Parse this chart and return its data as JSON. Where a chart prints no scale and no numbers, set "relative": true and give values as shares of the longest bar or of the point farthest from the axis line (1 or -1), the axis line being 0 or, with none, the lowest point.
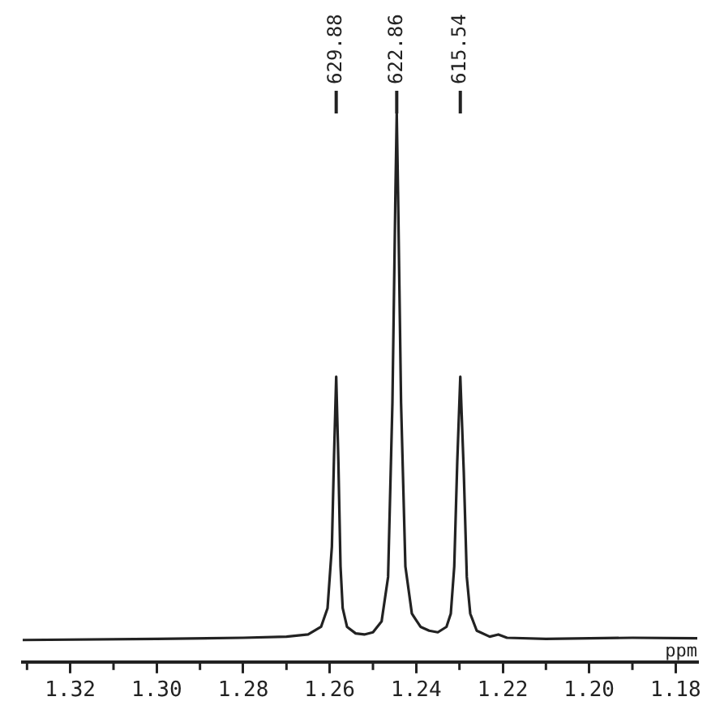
{
  "chart_data": {
    "type": "line",
    "xlabel": "ppm",
    "relative": true,
    "grid": false,
    "legend": false,
    "marker": "none",
    "line_style": "solid",
    "tick_labels": "x",
    "xlim": [
      1.331,
      1.175
    ],
    "xticks": [
      {
        "value": 1.33,
        "label": null
      },
      1.32,
      {
        "value": 1.31,
        "label": null
      },
      {
        "value": 1.3,
        "label": "1.30"
      },
      {
        "value": 1.29,
        "label": null
      },
      1.28,
      {
        "value": 1.27,
        "label": null
      },
      1.26,
      {
        "value": 1.25,
        "label": null
      },
      1.24,
      {
        "value": 1.23,
        "label": null
      },
      1.22,
      {
        "value": 1.21,
        "label": null
      },
      {
        "value": 1.2,
        "label": "1.20"
      },
      {
        "value": 1.19,
        "label": null
      },
      1.18
    ],
    "series": [
      {
        "color": "#222222",
        "x": [
          1.331,
          1.3,
          1.28,
          1.27,
          1.265,
          1.262,
          1.2605,
          1.2595,
          1.259,
          1.2585,
          1.258,
          1.2575,
          1.257,
          1.256,
          1.254,
          1.252,
          1.25,
          1.248,
          1.2465,
          1.2455,
          1.2448,
          1.2445,
          1.2442,
          1.2435,
          1.2425,
          1.241,
          1.239,
          1.237,
          1.235,
          1.233,
          1.232,
          1.2312,
          1.2305,
          1.2298,
          1.229,
          1.2283,
          1.2275,
          1.226,
          1.223,
          1.221,
          1.219,
          1.21,
          1.19,
          1.175
        ],
        "values": [
          0.04,
          0.042,
          0.044,
          0.046,
          0.05,
          0.064,
          0.098,
          0.21,
          0.376,
          0.52,
          0.366,
          0.174,
          0.098,
          0.064,
          0.052,
          0.05,
          0.054,
          0.074,
          0.155,
          0.472,
          0.856,
          1,
          0.856,
          0.472,
          0.174,
          0.088,
          0.064,
          0.057,
          0.054,
          0.064,
          0.088,
          0.174,
          0.366,
          0.52,
          0.347,
          0.155,
          0.088,
          0.057,
          0.046,
          0.05,
          0.044,
          0.042,
          0.044,
          0.043
        ]
      }
    ],
    "annotations": [
      {
        "text": "629.88",
        "x": 1.2585
      },
      {
        "text": "622.86",
        "x": 1.2445
      },
      {
        "text": "615.54",
        "x": 1.2298
      }
    ]
  }
}
